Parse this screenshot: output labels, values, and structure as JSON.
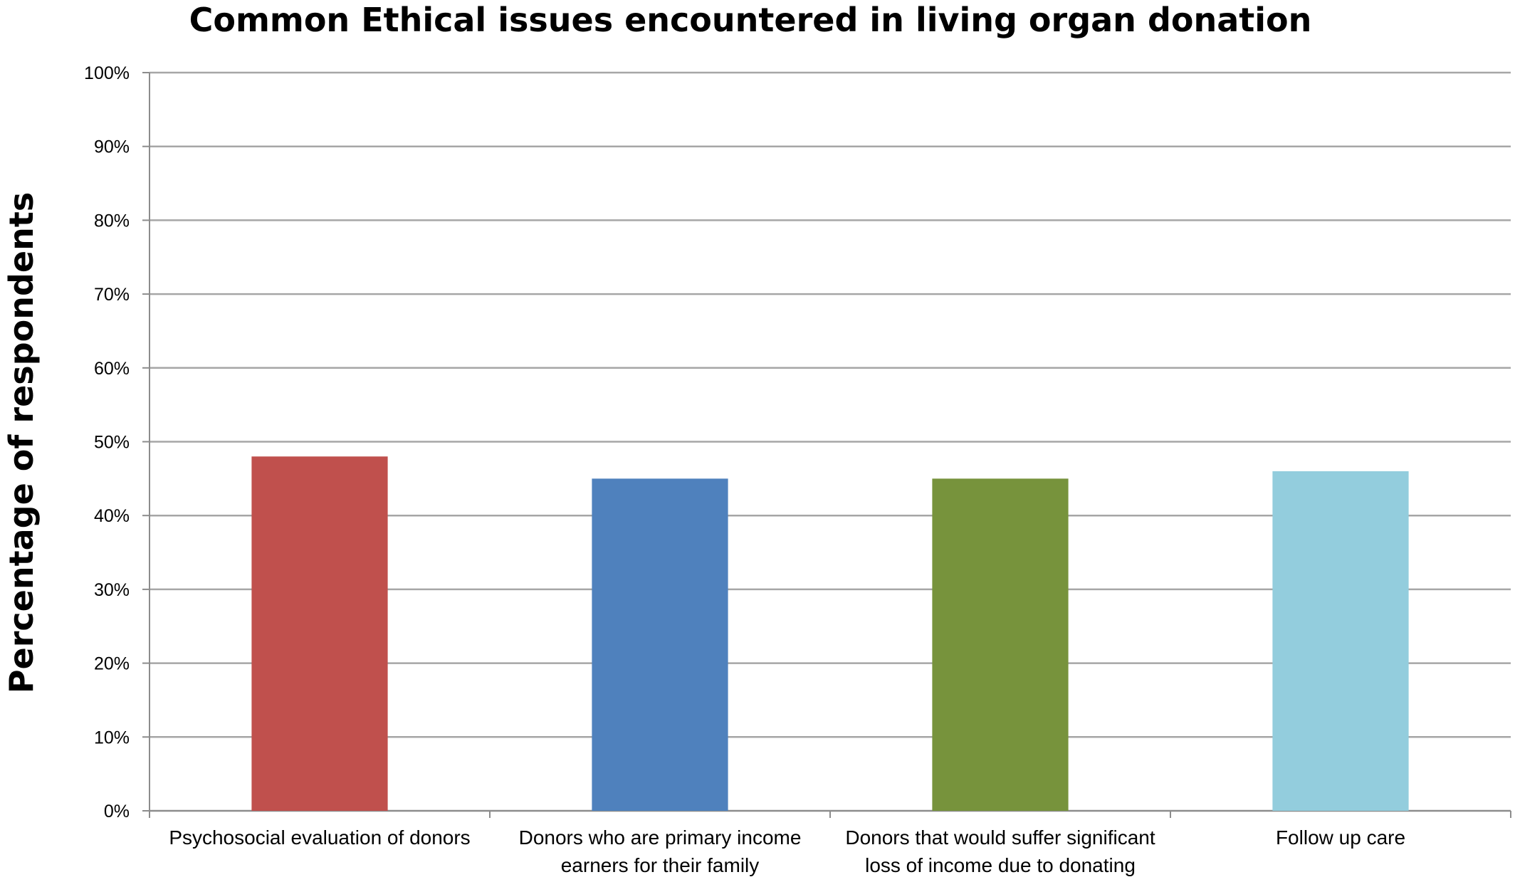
{
  "chart_data": {
    "type": "bar",
    "title": "Common Ethical issues encountered in living organ donation",
    "xlabel": "",
    "ylabel": "Percentage of respondents",
    "categories": [
      [
        "Psychosocial evaluation of donors"
      ],
      [
        "Donors who are primary income",
        "earners for their family"
      ],
      [
        "Donors that would suffer significant",
        "loss of income due to donating"
      ],
      [
        "Follow up care"
      ]
    ],
    "values": [
      48,
      45,
      45,
      46
    ],
    "colors": [
      "#c0504d",
      "#4f81bd",
      "#77933c",
      "#93cddd"
    ],
    "ylim": [
      0,
      100
    ],
    "yticks": [
      "0%",
      "10%",
      "20%",
      "30%",
      "40%",
      "50%",
      "60%",
      "70%",
      "80%",
      "90%",
      "100%"
    ],
    "grid": true,
    "legend": "none"
  }
}
